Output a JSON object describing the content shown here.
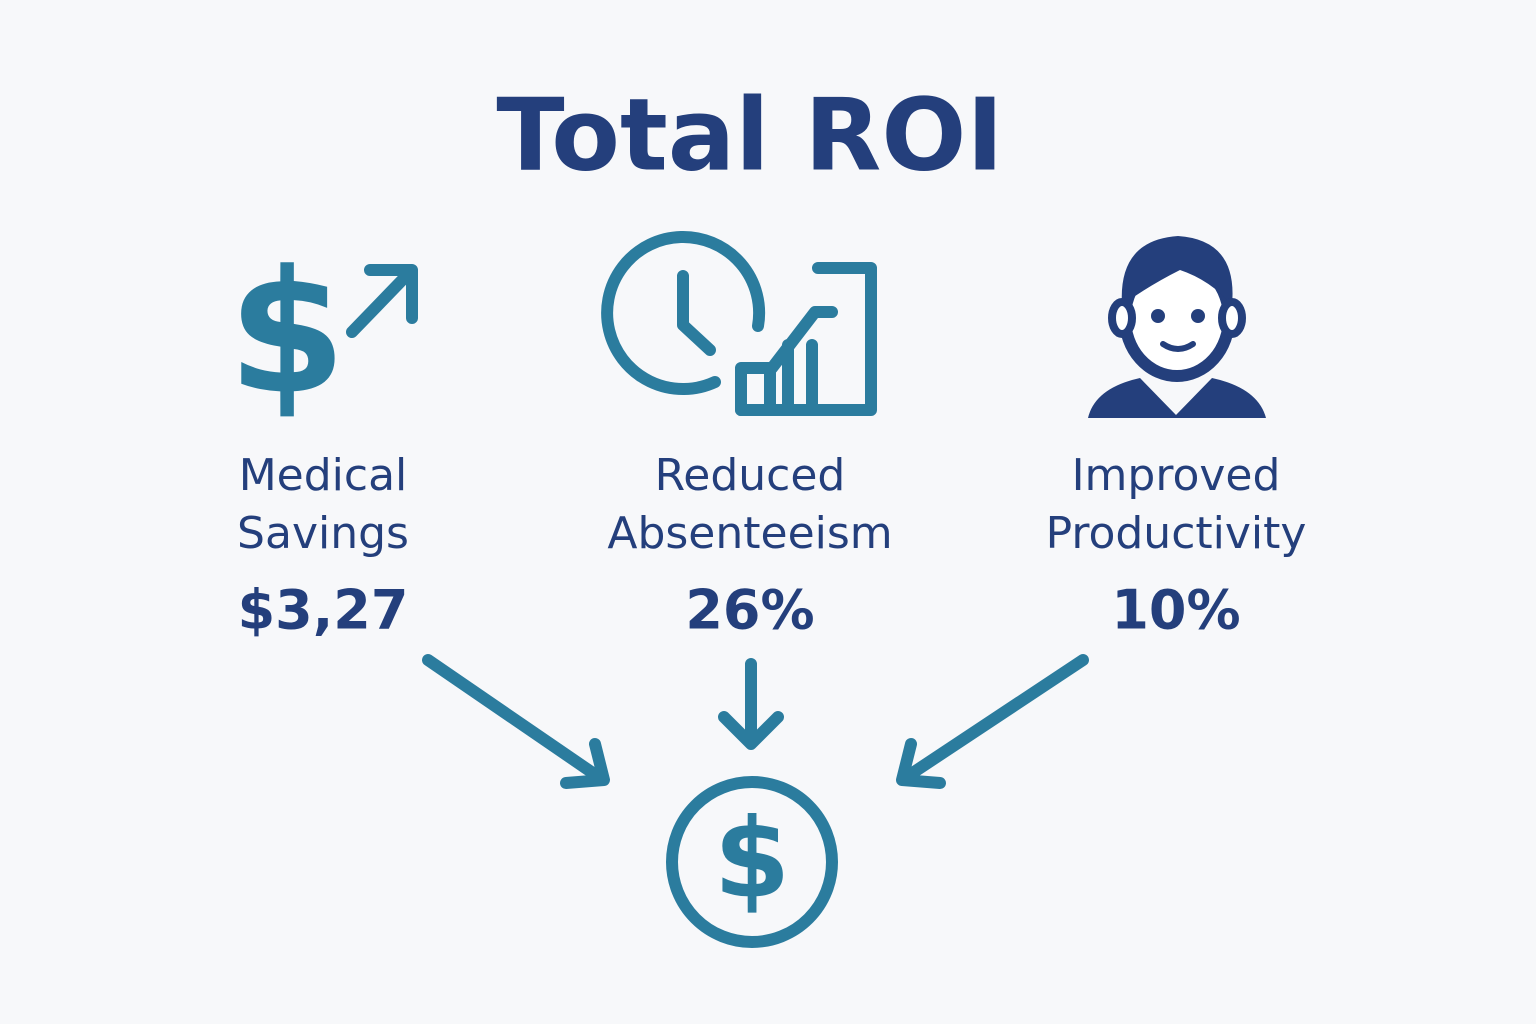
{
  "title": "Total ROI",
  "items": [
    {
      "label": [
        "Medical",
        "Savings"
      ],
      "value": "$3,27"
    },
    {
      "label": [
        "Reduced",
        "Absenteeism"
      ],
      "value": "26%"
    },
    {
      "label": [
        "Improved",
        "Productivity"
      ],
      "value": "10%"
    }
  ]
}
